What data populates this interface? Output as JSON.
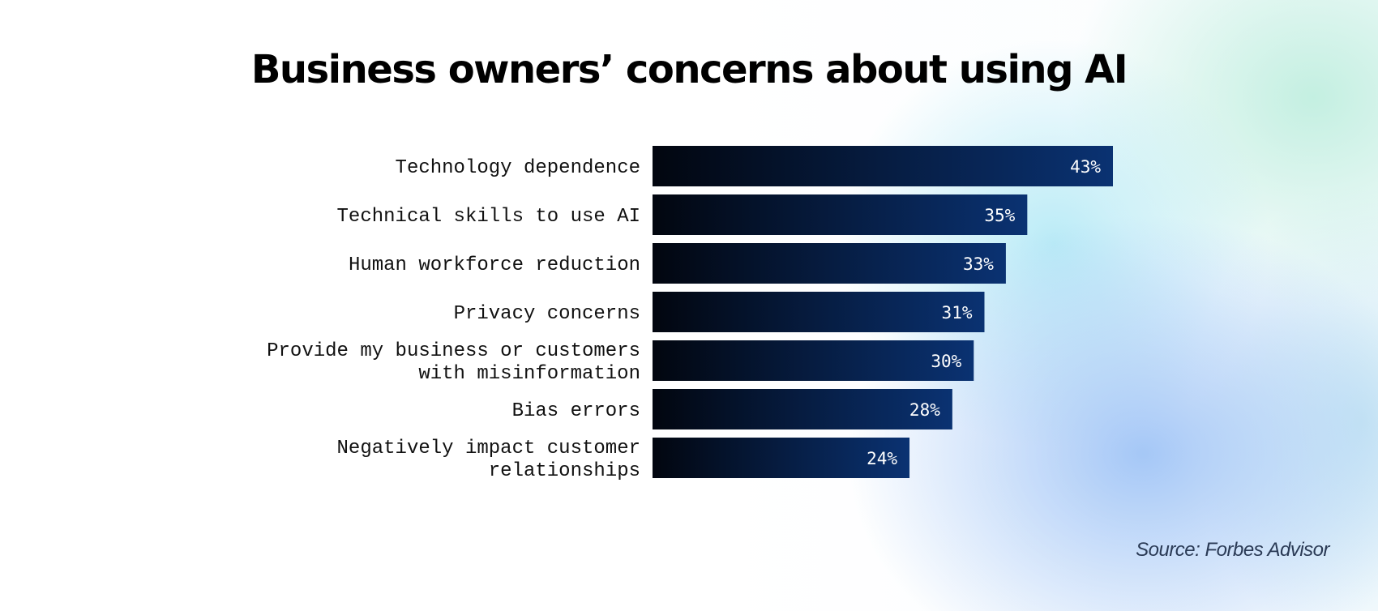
{
  "title": "Business owners’ concerns about using AI",
  "source": "Source: Forbes Advisor",
  "colors": {
    "bar_start": "#02060f",
    "bar_end": "#0a3272",
    "label_text": "#111111",
    "value_text": "#ffffff"
  },
  "chart_data": {
    "type": "bar",
    "orientation": "horizontal",
    "title": "Business owners’ concerns about using AI",
    "categories": [
      [
        "Technology dependence"
      ],
      [
        "Technical skills to use AI"
      ],
      [
        "Human workforce reduction"
      ],
      [
        "Privacy concerns"
      ],
      [
        "Provide my business or customers",
        "with misinformation"
      ],
      [
        "Bias errors"
      ],
      [
        "Negatively impact customer",
        "relationships"
      ]
    ],
    "values": [
      43,
      35,
      33,
      31,
      30,
      28,
      24
    ],
    "value_labels": [
      "43%",
      "35%",
      "33%",
      "31%",
      "30%",
      "28%",
      "24%"
    ],
    "unit": "%",
    "xlim": [
      0,
      43
    ],
    "grid": false,
    "legend": "none"
  }
}
